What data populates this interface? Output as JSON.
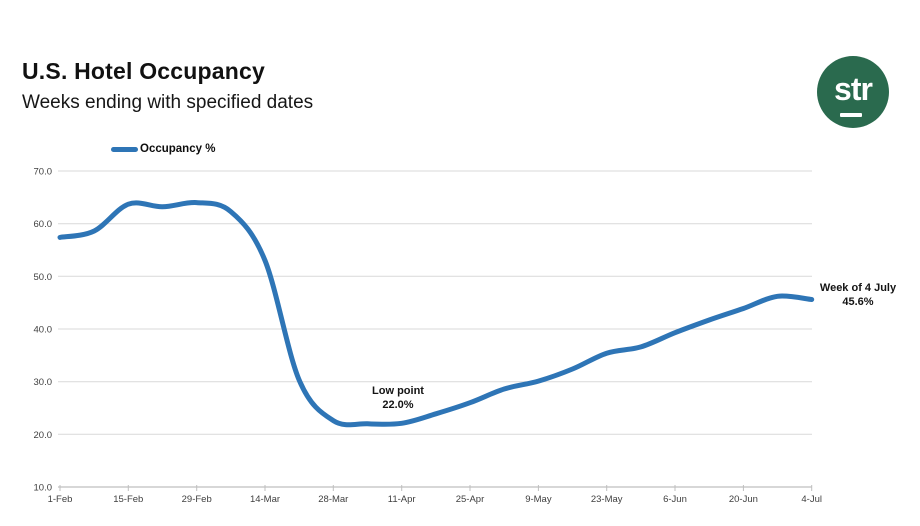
{
  "header": {
    "title": "U.S. Hotel Occupancy",
    "subtitle": "Weeks ending with specified dates"
  },
  "logo": {
    "text": "str",
    "bg_color": "#2A6A4E",
    "text_color": "#FFFFFF"
  },
  "legend": {
    "label": "Occupancy %",
    "swatch_color": "#2E75B6"
  },
  "chart_data": {
    "type": "line",
    "title": "U.S. Hotel Occupancy",
    "subtitle": "Weeks ending with specified dates",
    "x": [
      "1-Feb",
      "8-Feb",
      "15-Feb",
      "22-Feb",
      "29-Feb",
      "7-Mar",
      "14-Mar",
      "21-Mar",
      "28-Mar",
      "4-Apr",
      "11-Apr",
      "18-Apr",
      "25-Apr",
      "2-May",
      "9-May",
      "16-May",
      "23-May",
      "30-May",
      "6-Jun",
      "13-Jun",
      "20-Jun",
      "27-Jun",
      "4-Jul"
    ],
    "series": [
      {
        "name": "Occupancy %",
        "color": "#2E75B6",
        "values": [
          57.4,
          58.6,
          63.7,
          63.2,
          64.0,
          62.3,
          53.0,
          30.3,
          22.6,
          22.0,
          22.1,
          23.9,
          26.0,
          28.6,
          30.1,
          32.4,
          35.4,
          36.6,
          39.3,
          41.7,
          43.9,
          46.2,
          45.6
        ]
      }
    ],
    "x_tick_labels": [
      "1-Feb",
      "15-Feb",
      "29-Feb",
      "14-Mar",
      "28-Mar",
      "11-Apr",
      "25-Apr",
      "9-May",
      "23-May",
      "6-Jun",
      "20-Jun",
      "4-Jul"
    ],
    "y_tick_labels": [
      "70.0",
      "60.0",
      "50.0",
      "40.0",
      "30.0",
      "20.0",
      "10.0"
    ],
    "ylim": [
      10,
      70
    ],
    "grid": "horizontal",
    "gridline_color": "#D9D9D9",
    "axis_line_color": "#BFBFBF",
    "axis_label_color": "#3F3F3F",
    "legend_position": "top-left",
    "annotations": [
      {
        "id": "low-point",
        "lines": [
          "Low point",
          "22.0%"
        ],
        "anchor_x": "11-Apr"
      },
      {
        "id": "week-of-4-july",
        "lines": [
          "Week of 4 July",
          "45.6%"
        ],
        "anchor_x": "4-Jul"
      }
    ]
  }
}
